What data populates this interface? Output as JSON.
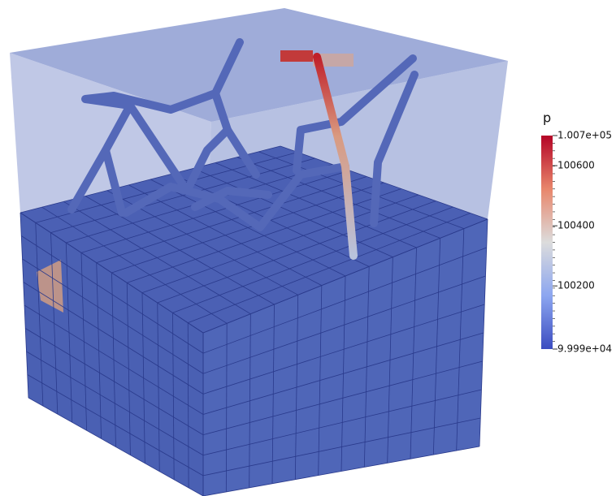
{
  "colorbar": {
    "title": "p",
    "ticks": [
      {
        "value": 100700,
        "label": "1.007e+05"
      },
      100600,
      100400,
      100200,
      {
        "value": 99990,
        "label": "9.999e+04"
      }
    ]
  }
}
